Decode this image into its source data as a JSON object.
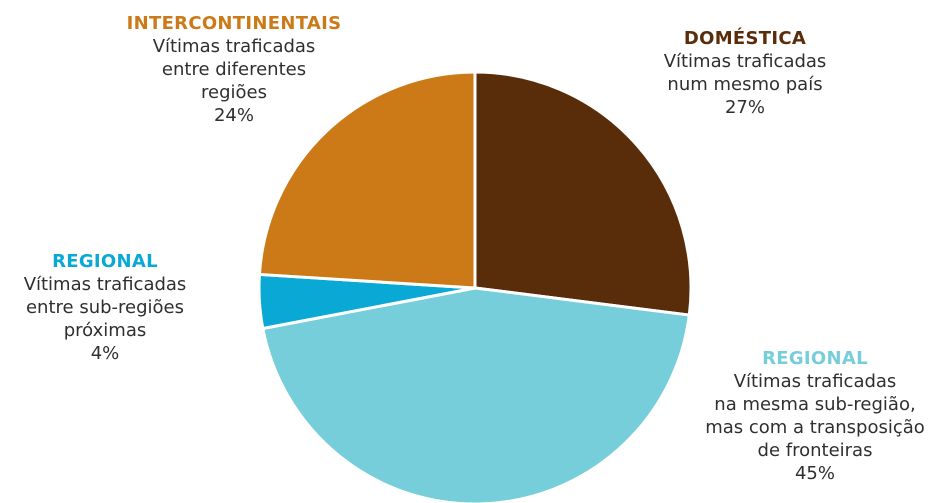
{
  "chart_data": {
    "type": "pie",
    "start_angle_deg": 0,
    "direction": "clockwise",
    "slices": [
      {
        "heading": "DOMÉSTICA",
        "lines": [
          "Vítimas traficadas",
          "num mesmo país"
        ],
        "value_label": "27%",
        "value": 27,
        "color": "#5a2d0a"
      },
      {
        "heading": "REGIONAL",
        "lines": [
          "Vítimas traficadas",
          "na mesma sub-região,",
          "mas com a transposição",
          "de fronteiras"
        ],
        "value_label": "45%",
        "value": 45,
        "color": "#76ceda"
      },
      {
        "heading": "REGIONAL",
        "lines": [
          "Vítimas traficadas",
          "entre sub-regiões",
          "próximas"
        ],
        "value_label": "4%",
        "value": 4,
        "color": "#0aa8d4"
      },
      {
        "heading": "INTERCONTINENTAIS",
        "lines": [
          "Vítimas traficadas",
          "entre diferentes",
          "regiões"
        ],
        "value_label": "24%",
        "value": 24,
        "color": "#cc7a18"
      }
    ]
  }
}
